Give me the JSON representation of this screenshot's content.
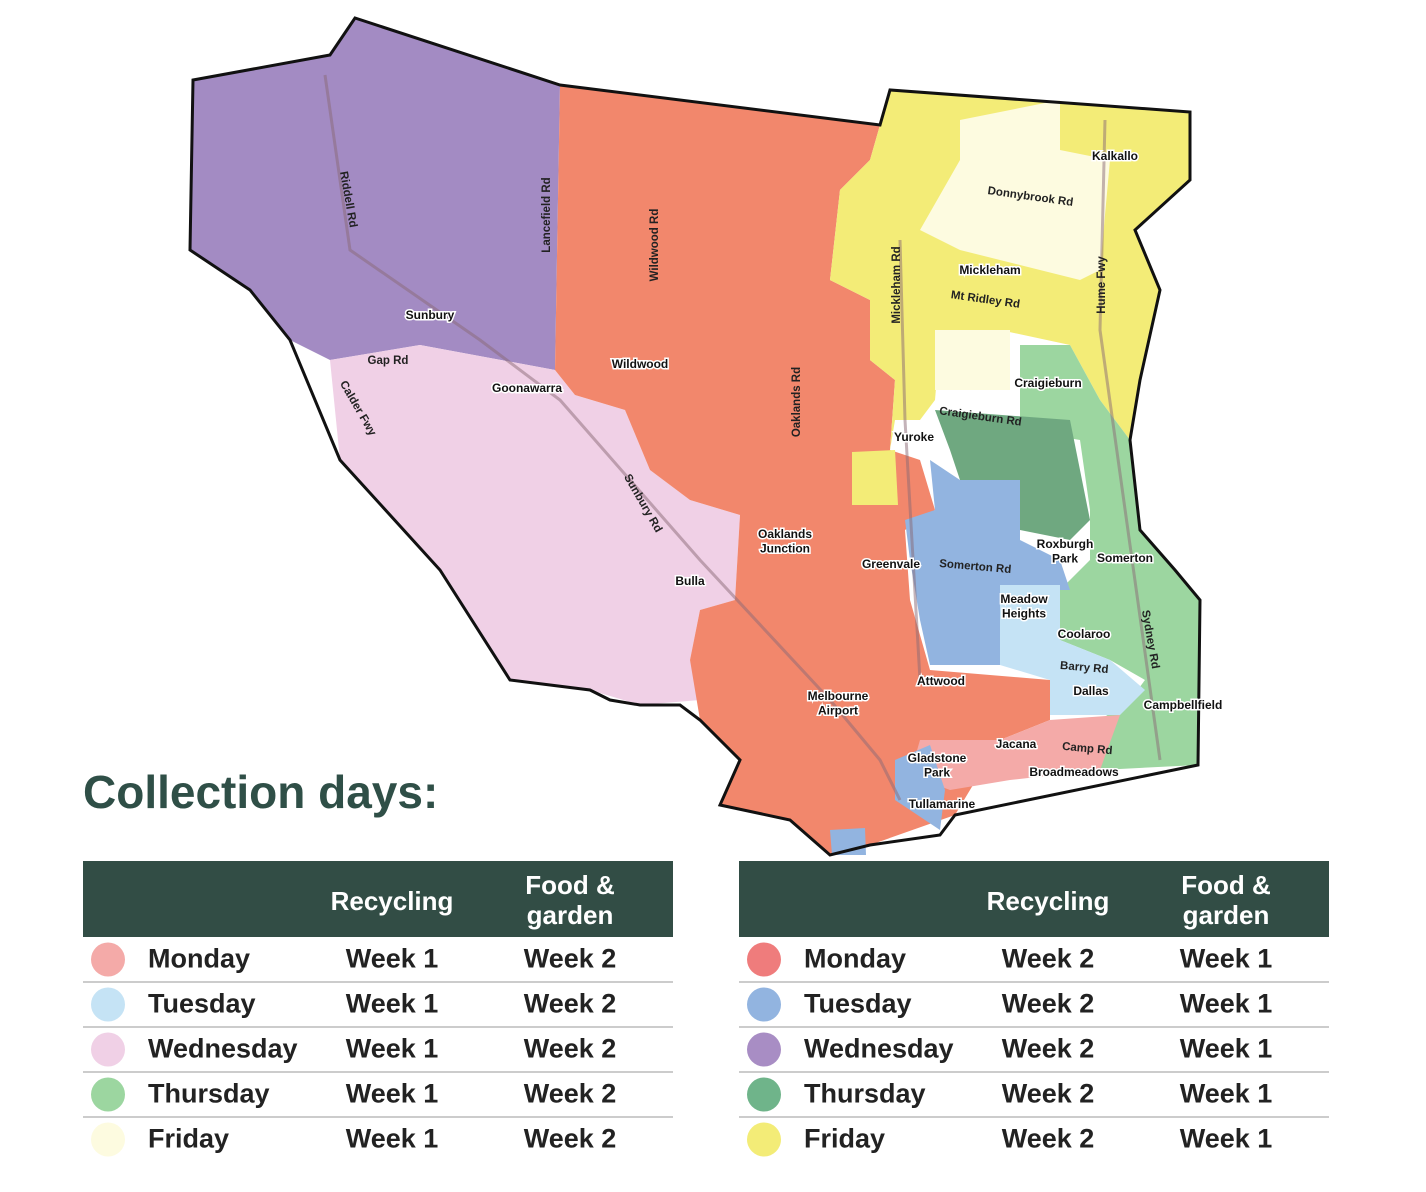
{
  "heading": "Collection days:",
  "map": {
    "places": [
      "Kalkallo",
      "Mickleham",
      "Craigieburn",
      "Yuroke",
      "Roxburgh Park",
      "Somerton",
      "Greenvale",
      "Meadow Heights",
      "Coolaroo",
      "Dallas",
      "Campbellfield",
      "Attwood",
      "Jacana",
      "Broadmeadows",
      "Gladstone Park",
      "Tullamarine",
      "Melbourne Airport",
      "Oaklands Junction",
      "Bulla",
      "Wildwood",
      "Goonawarra",
      "Sunbury"
    ],
    "roads": [
      "Donnybrook Rd",
      "Mt Ridley Rd",
      "Hume Fwy",
      "Mickleham Rd",
      "Craigieburn Rd",
      "Somerton Rd",
      "Barry Rd",
      "Sydney Rd",
      "Camp Rd",
      "Oaklands Rd",
      "Sunbury Rd",
      "Wildwood Rd",
      "Gap Rd",
      "Calder Fwy",
      "Riddell Rd",
      "Lancefield Rd"
    ]
  },
  "tables": [
    {
      "columns": [
        "Recycling",
        "Food & garden"
      ],
      "rows": [
        {
          "day": "Monday",
          "color": "#f4aaa8",
          "recycling": "Week 1",
          "food_garden": "Week 2"
        },
        {
          "day": "Tuesday",
          "color": "#c5e3f5",
          "recycling": "Week 1",
          "food_garden": "Week 2"
        },
        {
          "day": "Wednesday",
          "color": "#f0d0e6",
          "recycling": "Week 1",
          "food_garden": "Week 2"
        },
        {
          "day": "Thursday",
          "color": "#9cd6a0",
          "recycling": "Week 1",
          "food_garden": "Week 2"
        },
        {
          "day": "Friday",
          "color": "#fdfbe0",
          "recycling": "Week 1",
          "food_garden": "Week 2"
        }
      ]
    },
    {
      "columns": [
        "Recycling",
        "Food & garden"
      ],
      "rows": [
        {
          "day": "Monday",
          "color": "#ef7c7c",
          "recycling": "Week 2",
          "food_garden": "Week 1"
        },
        {
          "day": "Tuesday",
          "color": "#92b4e0",
          "recycling": "Week 2",
          "food_garden": "Week 1"
        },
        {
          "day": "Wednesday",
          "color": "#a88dc4",
          "recycling": "Week 2",
          "food_garden": "Week 1"
        },
        {
          "day": "Thursday",
          "color": "#6fb48a",
          "recycling": "Week 2",
          "food_garden": "Week 1"
        },
        {
          "day": "Friday",
          "color": "#f3ec77",
          "recycling": "Week 2",
          "food_garden": "Week 1"
        }
      ]
    }
  ]
}
